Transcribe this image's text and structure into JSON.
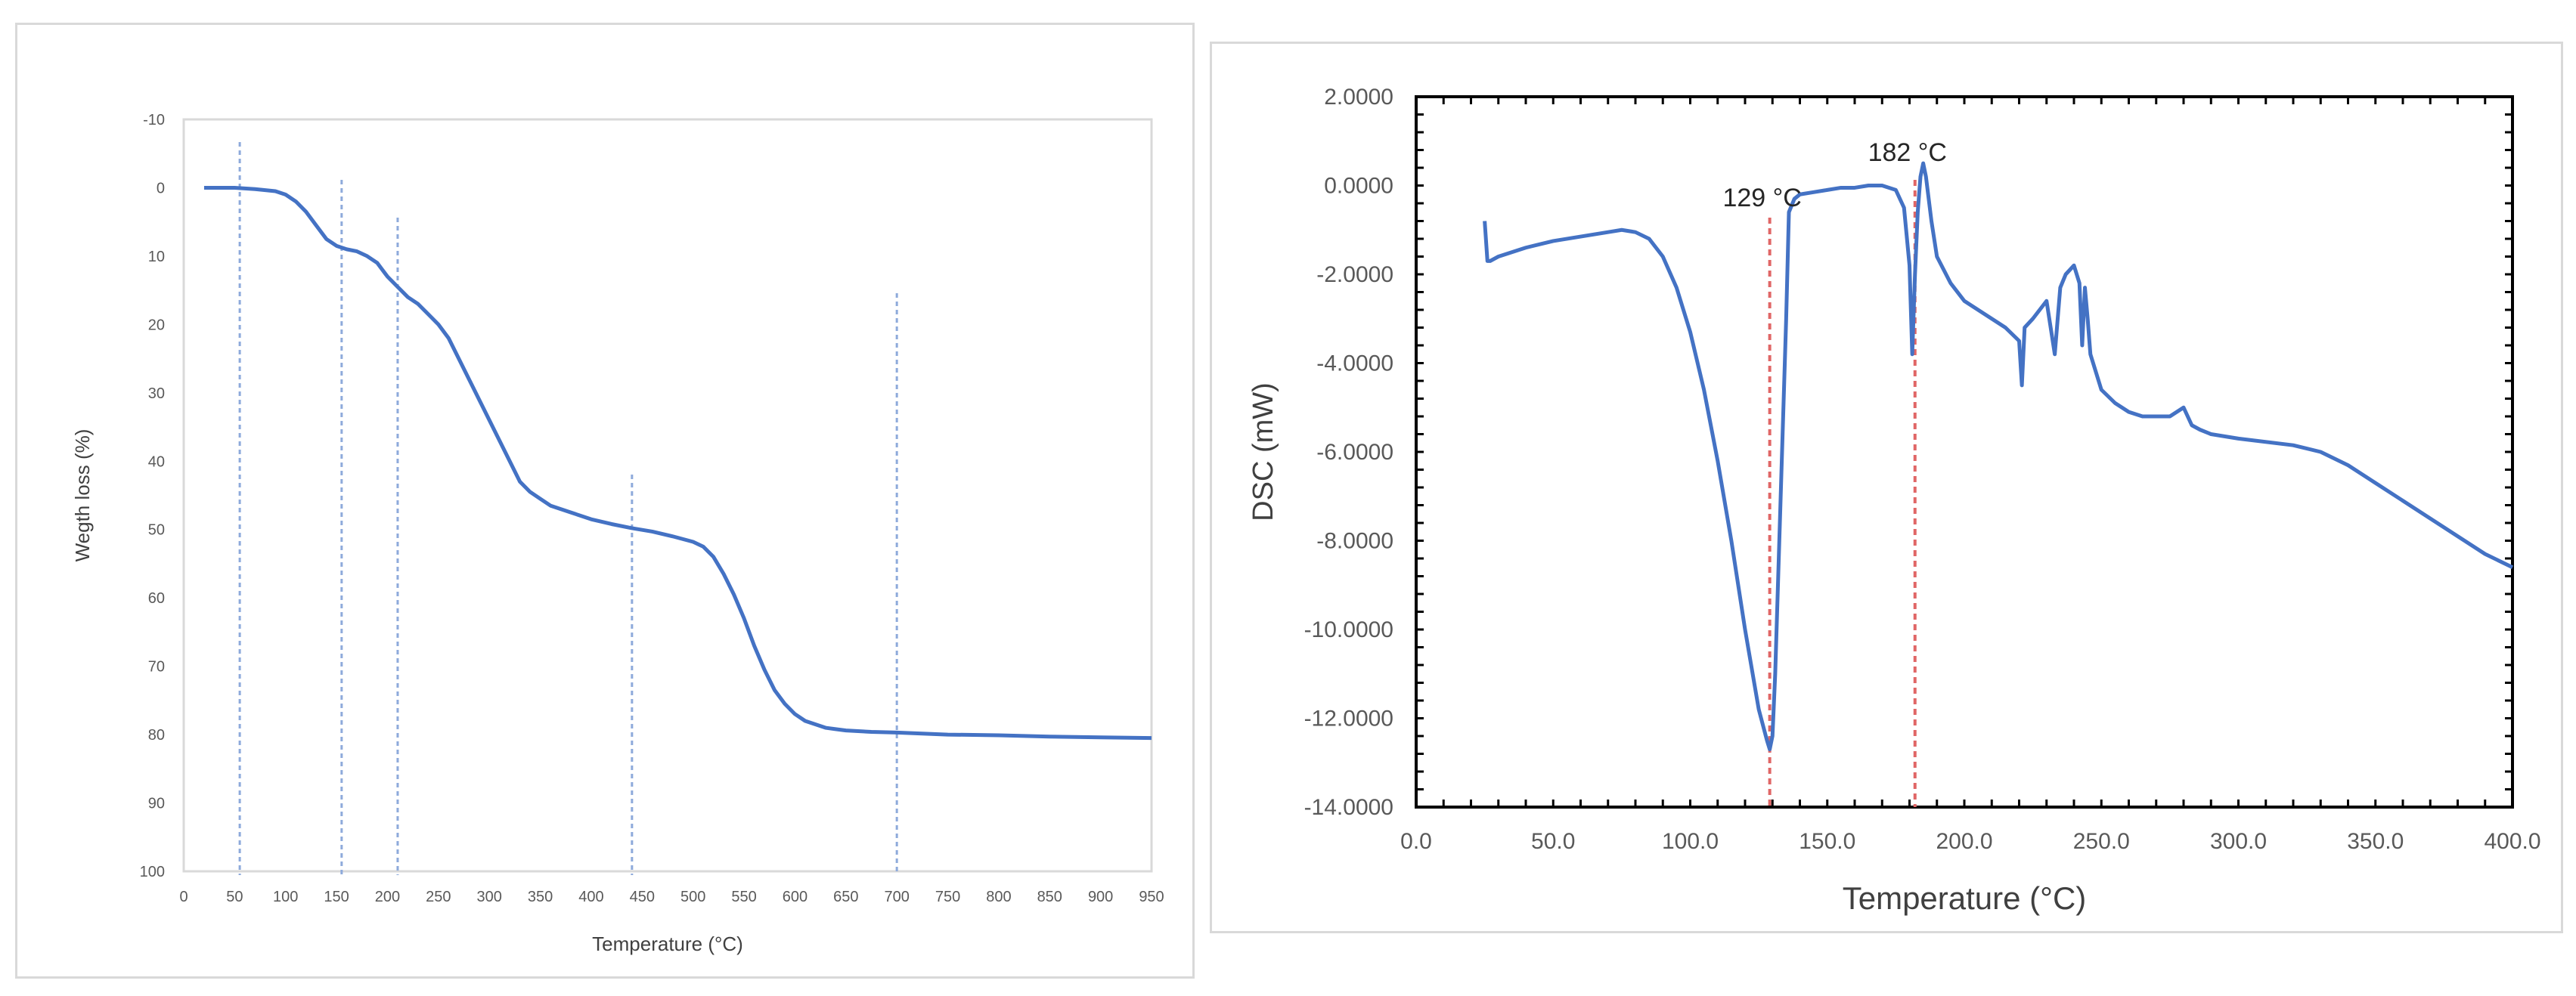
{
  "chart_data": [
    {
      "type": "line",
      "title": "",
      "xlabel": "Temperature (°C)",
      "ylabel": "Wegth loss (%)",
      "xlim": [
        0,
        950
      ],
      "ylim": [
        -10,
        100
      ],
      "y_inverted": true,
      "x_ticks": [
        "0",
        "50",
        "100",
        "150",
        "200",
        "250",
        "300",
        "350",
        "400",
        "450",
        "500",
        "550",
        "600",
        "650",
        "700",
        "750",
        "800",
        "850",
        "900",
        "950"
      ],
      "y_ticks": [
        "-10",
        "0",
        "10",
        "20",
        "30",
        "40",
        "50",
        "60",
        "70",
        "80",
        "90",
        "100"
      ],
      "grid": false,
      "line_color": "#4472c4",
      "marker_color": "#8eaadb",
      "series": [
        {
          "x": [
            20,
            50,
            70,
            90,
            100,
            110,
            120,
            130,
            140,
            150,
            160,
            170,
            180,
            190,
            200,
            210,
            220,
            230,
            240,
            250,
            260,
            270,
            280,
            290,
            300,
            310,
            320,
            330,
            340,
            350,
            360,
            380,
            400,
            420,
            440,
            460,
            480,
            500,
            510,
            520,
            530,
            540,
            550,
            560,
            570,
            580,
            590,
            600,
            610,
            620,
            630,
            640,
            650,
            675,
            700,
            750,
            800,
            850,
            900,
            950
          ],
          "y": [
            0,
            0,
            0.2,
            0.5,
            1,
            2,
            3.5,
            5.5,
            7.5,
            8.5,
            9,
            9.3,
            10,
            11,
            13,
            14.5,
            16,
            17,
            18.5,
            20,
            22,
            25,
            28,
            31,
            34,
            37,
            40,
            43,
            44.5,
            45.5,
            46.5,
            47.5,
            48.5,
            49.2,
            49.8,
            50.3,
            51,
            51.8,
            52.5,
            54,
            56.5,
            59.5,
            63,
            67,
            70.5,
            73.5,
            75.5,
            77,
            78,
            78.5,
            79,
            79.2,
            79.4,
            79.6,
            79.7,
            80,
            80.1,
            80.3,
            80.4,
            80.5
          ]
        }
      ],
      "marker_lines_x": [
        55,
        155,
        210,
        440,
        700
      ]
    },
    {
      "type": "line",
      "title": "",
      "xlabel": "Temperature (°C)",
      "ylabel": "DSC (mW)",
      "xlim": [
        0,
        400
      ],
      "ylim": [
        -14,
        2
      ],
      "x_ticks": [
        "0.0",
        "50.0",
        "100.0",
        "150.0",
        "200.0",
        "250.0",
        "300.0",
        "350.0",
        "400.0"
      ],
      "y_ticks": [
        "2.0000",
        "0.0000",
        "-2.0000",
        "-4.0000",
        "-6.0000",
        "-8.0000",
        "-10.0000",
        "-12.0000",
        "-14.0000"
      ],
      "grid": false,
      "line_color": "#4472c4",
      "marker_color": "#e06666",
      "annotations": [
        {
          "text": "129 °C",
          "x": 129
        },
        {
          "text": "182 °C",
          "x": 182
        }
      ],
      "series": [
        {
          "x": [
            25,
            26,
            27,
            30,
            40,
            50,
            60,
            70,
            75,
            80,
            85,
            90,
            95,
            100,
            105,
            110,
            115,
            120,
            125,
            128,
            129,
            130,
            131,
            133,
            135,
            136,
            138,
            140,
            145,
            150,
            155,
            160,
            165,
            170,
            175,
            178,
            180,
            181,
            182,
            183,
            184,
            185,
            186,
            188,
            190,
            195,
            200,
            205,
            210,
            215,
            220,
            221,
            222,
            225,
            230,
            233,
            235,
            237,
            240,
            242,
            243,
            244,
            245,
            246,
            248,
            250,
            255,
            260,
            265,
            270,
            275,
            280,
            283,
            286,
            290,
            300,
            320,
            330,
            340,
            350,
            360,
            370,
            380,
            390,
            400
          ],
          "y": [
            -0.8,
            -1.7,
            -1.7,
            -1.6,
            -1.4,
            -1.25,
            -1.15,
            -1.05,
            -1.0,
            -1.05,
            -1.2,
            -1.6,
            -2.3,
            -3.3,
            -4.6,
            -6.2,
            -8.0,
            -10.0,
            -11.8,
            -12.5,
            -12.7,
            -12.4,
            -11.0,
            -7.0,
            -3.0,
            -0.6,
            -0.3,
            -0.2,
            -0.15,
            -0.1,
            -0.05,
            -0.05,
            0.0,
            0.0,
            -0.1,
            -0.5,
            -1.8,
            -3.8,
            -2.0,
            -0.6,
            0.2,
            0.5,
            0.2,
            -0.8,
            -1.6,
            -2.2,
            -2.6,
            -2.8,
            -3.0,
            -3.2,
            -3.5,
            -4.5,
            -3.2,
            -3.0,
            -2.6,
            -3.8,
            -2.3,
            -2.0,
            -1.8,
            -2.2,
            -3.6,
            -2.3,
            -3.0,
            -3.8,
            -4.2,
            -4.6,
            -4.9,
            -5.1,
            -5.2,
            -5.2,
            -5.2,
            -5.0,
            -5.4,
            -5.5,
            -5.6,
            -5.7,
            -5.85,
            -6.0,
            -6.3,
            -6.7,
            -7.1,
            -7.5,
            -7.9,
            -8.3,
            -8.6
          ]
        }
      ],
      "marker_lines_x": [
        129,
        182
      ]
    }
  ]
}
